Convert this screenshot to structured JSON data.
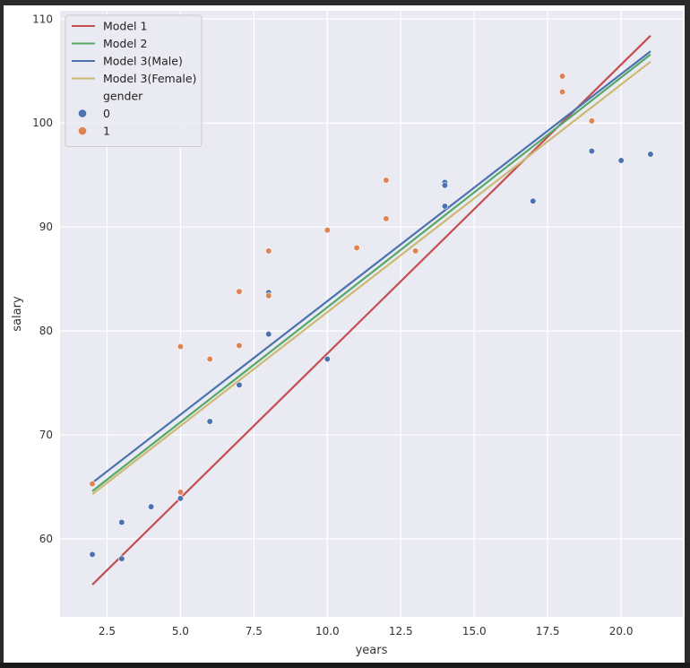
{
  "chart_data": {
    "type": "scatter",
    "title": "",
    "xlabel": "years",
    "ylabel": "salary",
    "xlim": [
      0.9,
      22.1
    ],
    "ylim": [
      52.5,
      110.8
    ],
    "xticks": [
      2.5,
      5.0,
      7.5,
      10.0,
      12.5,
      15.0,
      17.5,
      20.0
    ],
    "xtick_labels": [
      "2.5",
      "5.0",
      "7.5",
      "10.0",
      "12.5",
      "15.0",
      "17.5",
      "20.0"
    ],
    "yticks": [
      60,
      70,
      80,
      90,
      100,
      110
    ],
    "ytick_labels": [
      "60",
      "70",
      "80",
      "90",
      "100",
      "110"
    ],
    "grid": true,
    "legend_position": "top-left",
    "lines": [
      {
        "name": "Model 1",
        "color": "#c44e52",
        "x": [
          2,
          21
        ],
        "y": [
          55.6,
          108.4
        ]
      },
      {
        "name": "Model 2",
        "color": "#55a868",
        "x": [
          2,
          21
        ],
        "y": [
          64.6,
          106.6
        ]
      },
      {
        "name": "Model 3(Male)",
        "color": "#4c72b0",
        "x": [
          2,
          21
        ],
        "y": [
          65.4,
          106.9
        ]
      },
      {
        "name": "Model 3(Female)",
        "color": "#ccb974",
        "x": [
          2,
          21
        ],
        "y": [
          64.3,
          105.9
        ]
      }
    ],
    "hue_title": "gender",
    "scatter_series": [
      {
        "name": "0",
        "color": "#4c72b0",
        "points": [
          [
            2,
            58.5
          ],
          [
            3,
            61.6
          ],
          [
            3,
            58.1
          ],
          [
            4,
            63.1
          ],
          [
            5,
            63.9
          ],
          [
            6,
            71.3
          ],
          [
            7,
            74.8
          ],
          [
            8,
            79.7
          ],
          [
            8,
            83.7
          ],
          [
            10,
            77.3
          ],
          [
            14,
            94.3
          ],
          [
            14,
            94.0
          ],
          [
            14,
            92.0
          ],
          [
            17,
            92.5
          ],
          [
            19,
            97.3
          ],
          [
            20,
            96.4
          ],
          [
            21,
            97.0
          ]
        ]
      },
      {
        "name": "1",
        "color": "#dd8452",
        "points": [
          [
            2,
            65.3
          ],
          [
            5,
            78.5
          ],
          [
            5,
            64.5
          ],
          [
            6,
            77.3
          ],
          [
            7,
            83.8
          ],
          [
            7,
            78.6
          ],
          [
            8,
            87.7
          ],
          [
            8,
            83.4
          ],
          [
            10,
            89.7
          ],
          [
            11,
            88.0
          ],
          [
            12,
            94.5
          ],
          [
            12,
            90.8
          ],
          [
            13,
            87.7
          ],
          [
            18,
            104.5
          ],
          [
            18,
            103.0
          ],
          [
            19,
            100.2
          ]
        ]
      }
    ]
  }
}
